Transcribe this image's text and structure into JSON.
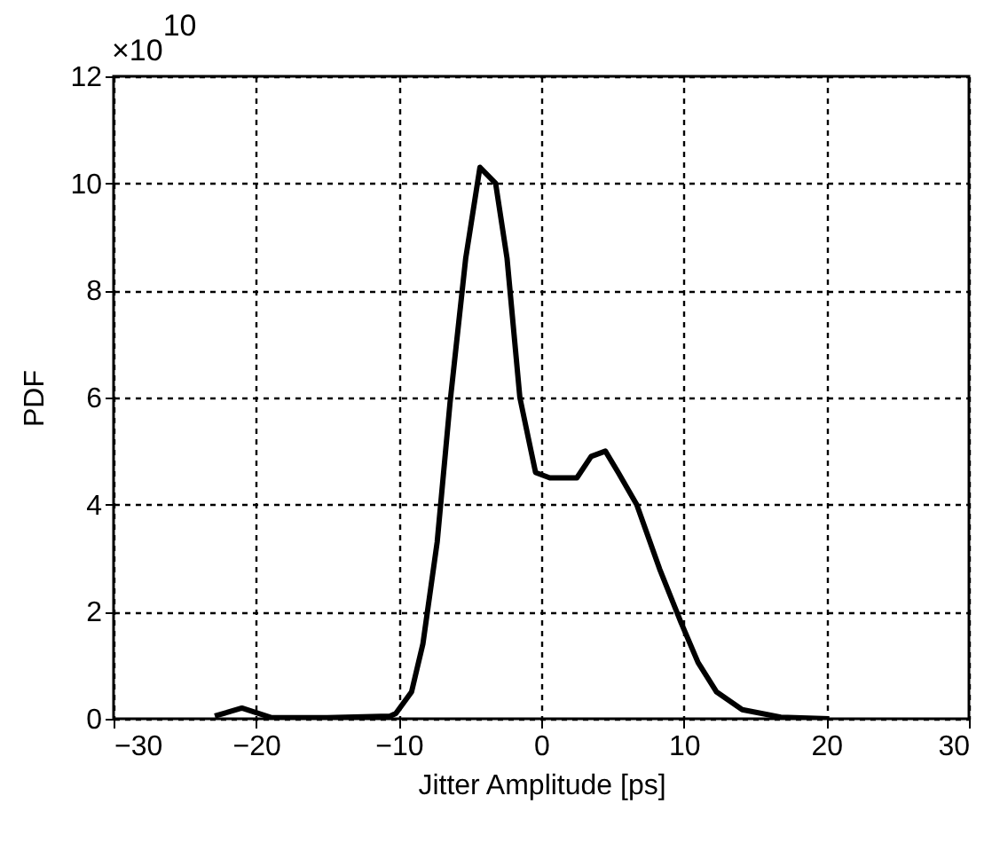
{
  "chart_data": {
    "type": "line",
    "xlabel": "Jitter Amplitude [ps]",
    "ylabel": "PDF",
    "annotations": [
      "×10$^{10}$"
    ],
    "xlim": [
      -30,
      30
    ],
    "xticks": [
      -30,
      -20,
      -10,
      0,
      10,
      20,
      30
    ],
    "ylim": [
      0,
      12
    ],
    "yticks": [
      0,
      2,
      4,
      6,
      8,
      10,
      12
    ],
    "grid": true,
    "line_style": "solid",
    "marker": "none",
    "series": [
      {
        "color": "#000000",
        "x": [
          -22.9,
          -21,
          -18.9,
          -15,
          -10.6,
          -10.2,
          -9.1,
          -8.3,
          -7.3,
          -6.4,
          -5.3,
          -4.3,
          -3.2,
          -2.4,
          -1.5,
          -0.4,
          0.6,
          2.5,
          3.5,
          4.5,
          5.4,
          6.7,
          8.3,
          9.8,
          11,
          12.3,
          14.1,
          16.8,
          20.2
        ],
        "values": [
          0.05,
          0.2,
          0.02,
          0.02,
          0.05,
          0.1,
          0.5,
          1.4,
          3.3,
          5.9,
          8.6,
          10.3,
          10,
          8.6,
          6,
          4.6,
          4.5,
          4.5,
          4.9,
          5,
          4.6,
          4,
          2.8,
          1.8,
          1.05,
          0.5,
          0.17,
          0.03,
          0
        ]
      }
    ]
  }
}
